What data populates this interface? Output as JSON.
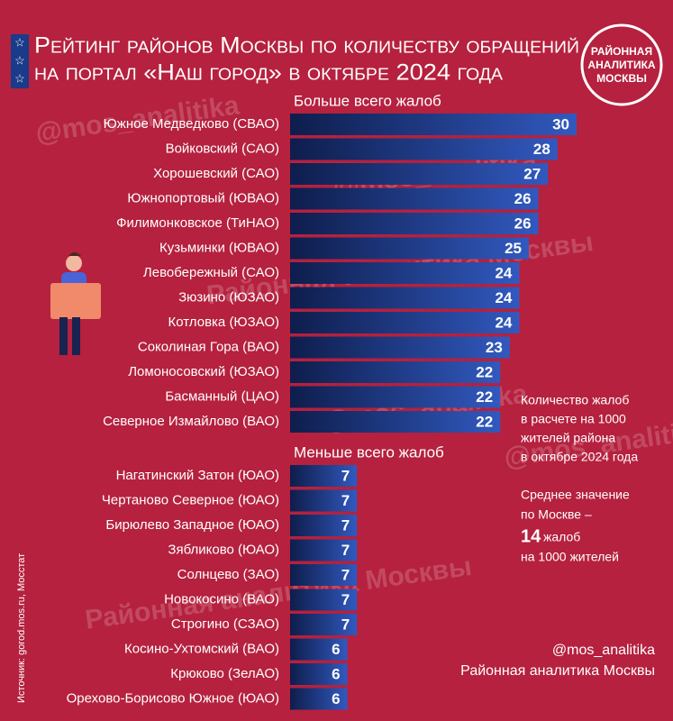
{
  "chart_data": {
    "type": "bar",
    "title": [
      "Рейтинг районов Москвы по количеству обращений",
      "на портал «Наш город» в октябре 2024 года"
    ],
    "logo": [
      "РАЙОННАЯ",
      "АНАЛИТИКА",
      "МОСКВЫ"
    ],
    "groups": [
      {
        "title": "Больше всего жалоб",
        "categories": [
          "Южное Медведково (СВАО)",
          "Войковский (САО)",
          "Хорошевский (САО)",
          "Южнопортовый (ЮВАО)",
          "Филимонковское (ТиНАО)",
          "Кузьминки (ЮВАО)",
          "Левобережный (САО)",
          "Зюзино (ЮЗАО)",
          "Котловка (ЮЗАО)",
          "Соколиная Гора (ВАО)",
          "Ломоносовский (ЮЗАО)",
          "Басманный (ЦАО)",
          "Северное Измайлово (ВАО)"
        ],
        "values": [
          30,
          28,
          27,
          26,
          26,
          25,
          24,
          24,
          24,
          23,
          22,
          22,
          22
        ]
      },
      {
        "title": "Меньше всего жалоб",
        "categories": [
          "Нагатинский Затон (ЮАО)",
          "Чертаново Северное (ЮАО)",
          "Бирюлево Западное (ЮАО)",
          "Зябликово (ЮАО)",
          "Солнцево (ЗАО)",
          "Новокосино (ВАО)",
          "Строгино (СЗАО)",
          "Косино-Ухтомский (ВАО)",
          "Крюково (ЗелАО)",
          "Орехово-Борисово Южное (ЮАО)"
        ],
        "values": [
          7,
          7,
          7,
          7,
          7,
          7,
          7,
          6,
          6,
          6
        ]
      }
    ],
    "note": [
      "Количество жалоб",
      "в расчете на 1000",
      "жителей района",
      "в октябре 2024 года"
    ],
    "average": {
      "lines": [
        "Среднее значение",
        "по Москве –"
      ],
      "value": 14,
      "unit": "жалоб",
      "tail": "на 1000 жителей"
    },
    "watermarks": [
      "@mos_analitika",
      "@mos_analitika",
      "Районная аналитика Москвы",
      "@mos_analitika",
      "@mos_analitika",
      "Районная аналитика Москвы"
    ],
    "source": "Источник: gorod.mos.ru, Мосстат",
    "credits": [
      "@mos_analitika",
      "Районная аналитика Москвы"
    ]
  }
}
